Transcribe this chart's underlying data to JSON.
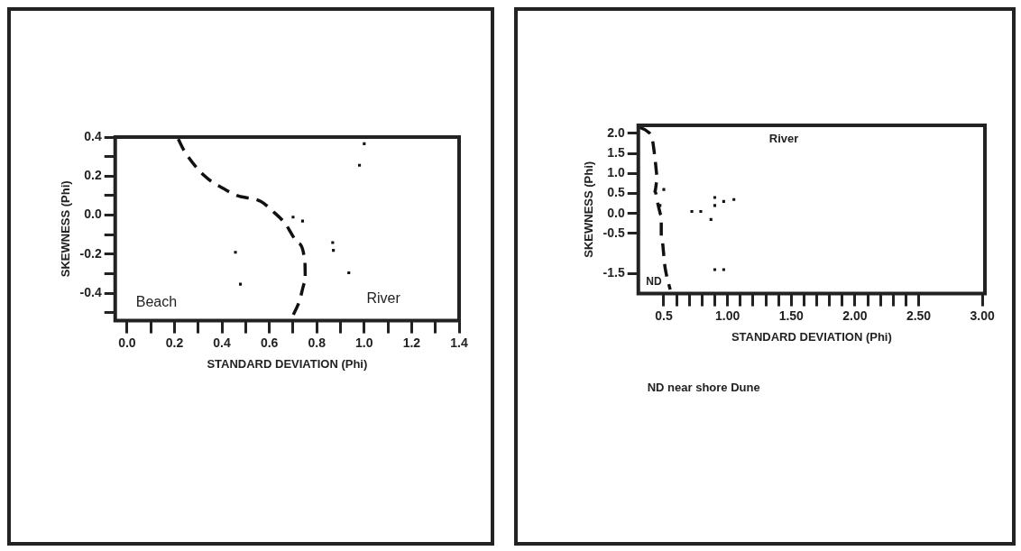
{
  "chart_data": [
    {
      "type": "scatter",
      "xlabel": "STANDARD DEVIATION (Phi)",
      "ylabel": "SKEWNESS (Phi)",
      "xlim": [
        -0.05,
        1.4
      ],
      "ylim": [
        -0.54,
        0.4
      ],
      "xticks": [
        {
          "value": 0,
          "label": "0.0"
        },
        {
          "value": 0.1,
          "label": null
        },
        0.2,
        {
          "value": 0.3,
          "label": null
        },
        0.4,
        {
          "value": 0.5,
          "label": null
        },
        0.6,
        {
          "value": 0.7,
          "label": null
        },
        0.8,
        {
          "value": 0.9,
          "label": null
        },
        {
          "value": 1.0,
          "label": "1.0"
        },
        {
          "value": 1.1,
          "label": null
        },
        1.2,
        {
          "value": 1.3,
          "label": null
        },
        1.4
      ],
      "yticks": [
        0.4,
        {
          "value": 0.3,
          "label": null
        },
        0.2,
        {
          "value": 0.1,
          "label": null
        },
        {
          "value": 0,
          "label": "0.0"
        },
        {
          "value": -0.1,
          "label": null
        },
        -0.2,
        {
          "value": -0.3,
          "label": null
        },
        -0.4,
        {
          "value": -0.5,
          "label": null
        }
      ],
      "grid": false,
      "legend": false,
      "marker": "square",
      "series": [
        {
          "color": "#111111",
          "x": [
            1.0,
            0.98,
            0.7,
            0.74,
            0.867,
            0.87,
            0.935,
            0.457,
            0.478
          ],
          "values": [
            0.366,
            0.256,
            -0.01,
            -0.03,
            -0.14,
            -0.18,
            -0.295,
            -0.19,
            -0.353
          ]
        },
        {
          "type": "line",
          "color": "#111111",
          "line_style": "dashed",
          "marker": "none",
          "x": [
            0.216,
            0.241,
            0.328,
            0.416,
            0.465,
            0.565,
            0.615,
            0.665,
            0.72,
            0.75,
            0.752,
            0.727,
            0.693
          ],
          "values": [
            0.39,
            0.33,
            0.2,
            0.13,
            0.1,
            0.07,
            0.02,
            -0.04,
            -0.14,
            -0.24,
            -0.34,
            -0.44,
            -0.53
          ]
        }
      ],
      "annotations": [
        "Beach",
        "River"
      ]
    },
    {
      "type": "scatter",
      "xlabel": "STANDARD DEVIATION (Phi)",
      "ylabel": "SKEWNESS (Phi)",
      "xlim": [
        0.3,
        3.02
      ],
      "ylim": [
        -2.0,
        2.2
      ],
      "xticks": [
        0.5,
        {
          "value": 0.6,
          "label": null
        },
        {
          "value": 0.7,
          "label": null
        },
        {
          "value": 0.8,
          "label": null
        },
        {
          "value": 0.9,
          "label": null
        },
        {
          "value": 1.0,
          "label": "1.00"
        },
        {
          "value": 1.1,
          "label": null
        },
        {
          "value": 1.2,
          "label": null
        },
        {
          "value": 1.3,
          "label": null
        },
        {
          "value": 1.4,
          "label": null
        },
        {
          "value": 1.5,
          "label": "1.50"
        },
        {
          "value": 1.6,
          "label": null
        },
        {
          "value": 1.7,
          "label": null
        },
        {
          "value": 1.8,
          "label": null
        },
        {
          "value": 1.9,
          "label": null
        },
        {
          "value": 2.0,
          "label": "2.00"
        },
        {
          "value": 2.1,
          "label": null
        },
        {
          "value": 2.2,
          "label": null
        },
        {
          "value": 2.3,
          "label": null
        },
        {
          "value": 2.4,
          "label": null
        },
        {
          "value": 2.5,
          "label": "2.50"
        },
        {
          "value": 3.0,
          "label": "3.00"
        }
      ],
      "yticks": [
        {
          "value": 2.0,
          "label": "2.0"
        },
        1.5,
        {
          "value": 1.0,
          "label": "1.0"
        },
        0.5,
        {
          "value": 0,
          "label": "0.0"
        },
        -0.5,
        -1.5
      ],
      "grid": false,
      "legend": false,
      "marker": "square",
      "series": [
        {
          "color": "#111111",
          "x": [
            0.5,
            0.47,
            0.72,
            0.79,
            0.87,
            0.9,
            0.9,
            0.97,
            1.05,
            0.9,
            0.97
          ],
          "values": [
            0.6,
            0.2,
            0.05,
            0.05,
            -0.15,
            0.4,
            0.2,
            0.3,
            0.35,
            -1.4,
            -1.4
          ]
        },
        {
          "type": "line",
          "color": "#111111",
          "line_style": "dashed",
          "marker": "none",
          "x": [
            0.31,
            0.37,
            0.41,
            0.43,
            0.45,
            0.43,
            0.46,
            0.48,
            0.48,
            0.51,
            0.55
          ],
          "values": [
            2.15,
            2.05,
            1.85,
            1.4,
            0.9,
            0.55,
            0.15,
            -0.05,
            -0.55,
            -1.35,
            -1.9
          ]
        }
      ],
      "annotations": [
        "River",
        "ND",
        "ND near shore Dune"
      ]
    }
  ]
}
